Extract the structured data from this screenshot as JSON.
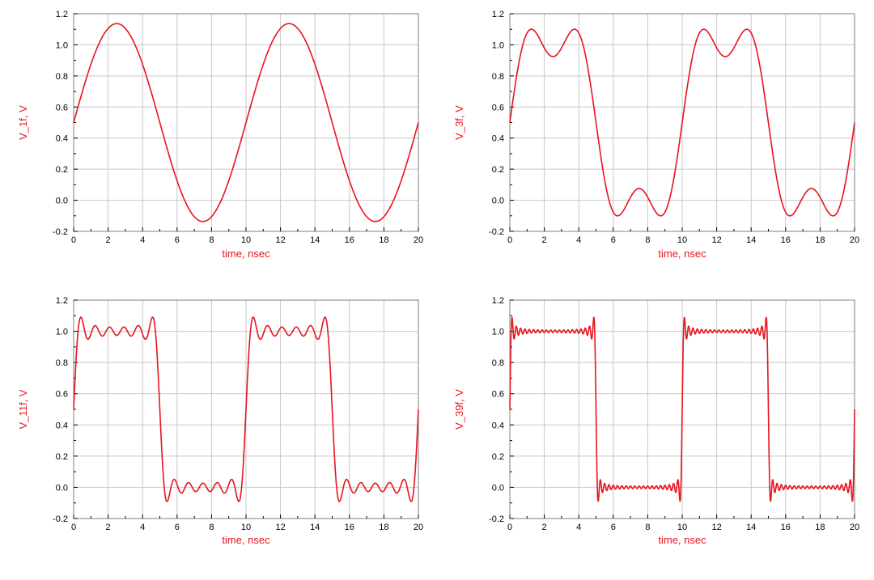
{
  "style": {
    "trace_color": "#e8141e",
    "label_color": "#e8141e",
    "grid_color": "#c8c8c8",
    "frame_color": "#808080"
  },
  "chart_data": [
    {
      "type": "line",
      "xlabel": "time, nsec",
      "ylabel": "V_1f, V",
      "xlim": [
        0,
        20
      ],
      "ylim": [
        -0.2,
        1.2
      ],
      "xticks": [
        "0",
        "2",
        "4",
        "6",
        "8",
        "10",
        "12",
        "14",
        "16",
        "18",
        "20"
      ],
      "yticks": [
        "-0.2",
        "0.0",
        "0.2",
        "0.4",
        "0.6",
        "0.8",
        "1.0",
        "1.2"
      ],
      "grid": true,
      "series": [
        {
          "harmonics": 1,
          "period_ns": 10,
          "offset": 0.5,
          "amplitude": 0.5
        }
      ]
    },
    {
      "type": "line",
      "xlabel": "time, nsec",
      "ylabel": "V_3f, V",
      "xlim": [
        0,
        20
      ],
      "ylim": [
        -0.2,
        1.2
      ],
      "xticks": [
        "0",
        "2",
        "4",
        "6",
        "8",
        "10",
        "12",
        "14",
        "16",
        "18",
        "20"
      ],
      "yticks": [
        "-0.2",
        "0.0",
        "0.2",
        "0.4",
        "0.6",
        "0.8",
        "1.0",
        "1.2"
      ],
      "grid": true,
      "series": [
        {
          "harmonics": 3,
          "period_ns": 10,
          "offset": 0.5,
          "amplitude": 0.5
        }
      ]
    },
    {
      "type": "line",
      "xlabel": "time, nsec",
      "ylabel": "V_11f, V",
      "xlim": [
        0,
        20
      ],
      "ylim": [
        -0.2,
        1.2
      ],
      "xticks": [
        "0",
        "2",
        "4",
        "6",
        "8",
        "10",
        "12",
        "14",
        "16",
        "18",
        "20"
      ],
      "yticks": [
        "-0.2",
        "0.0",
        "0.2",
        "0.4",
        "0.6",
        "0.8",
        "1.0",
        "1.2"
      ],
      "grid": true,
      "series": [
        {
          "harmonics": 11,
          "period_ns": 10,
          "offset": 0.5,
          "amplitude": 0.5
        }
      ]
    },
    {
      "type": "line",
      "xlabel": "time, nsec",
      "ylabel": "V_39f, V",
      "xlim": [
        0,
        20
      ],
      "ylim": [
        -0.2,
        1.2
      ],
      "xticks": [
        "0",
        "2",
        "4",
        "6",
        "8",
        "10",
        "12",
        "14",
        "16",
        "18",
        "20"
      ],
      "yticks": [
        "-0.2",
        "0.0",
        "0.2",
        "0.4",
        "0.6",
        "0.8",
        "1.0",
        "1.2"
      ],
      "grid": true,
      "series": [
        {
          "harmonics": 39,
          "period_ns": 10,
          "offset": 0.5,
          "amplitude": 0.5
        }
      ]
    }
  ]
}
